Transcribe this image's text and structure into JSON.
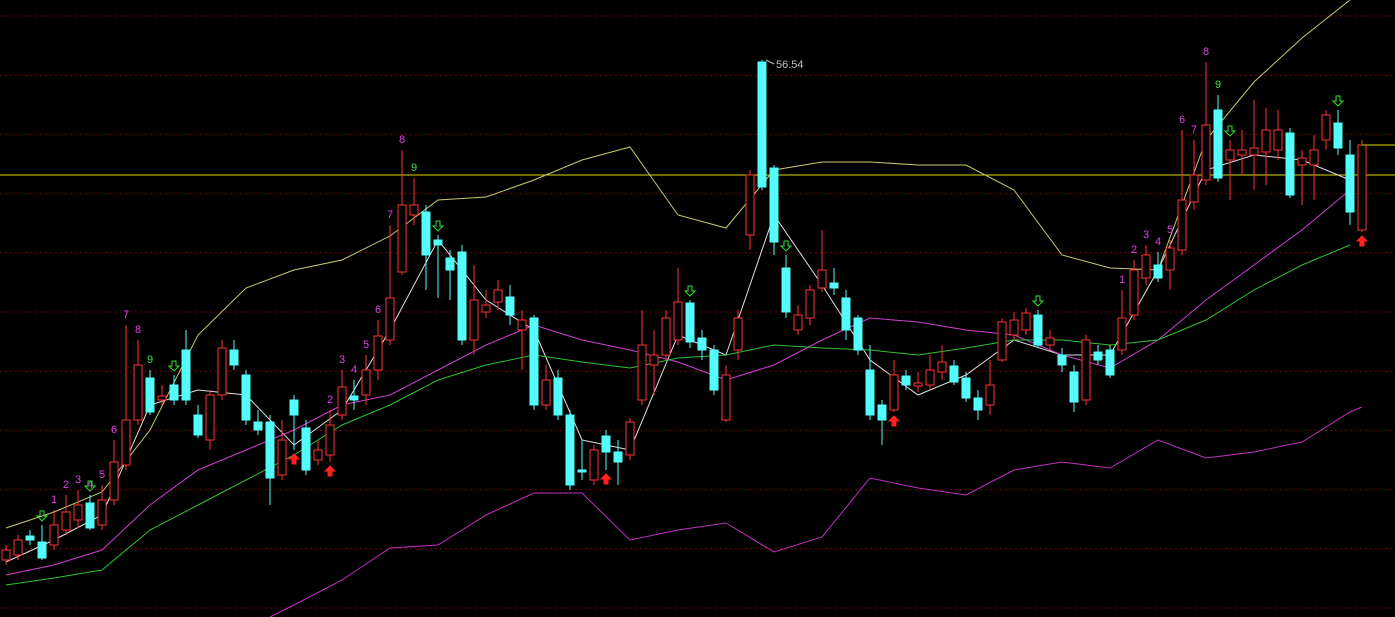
{
  "chart_data": {
    "type": "candlestick",
    "ylim": [
      28.69,
      59.54
    ],
    "grid": true,
    "up_color": "#ff3232",
    "down_color": "#54fcfc",
    "open": [
      31.54,
      31.79,
      32.74,
      32.44,
      32.29,
      33.04,
      33.54,
      34.39,
      33.29,
      34.54,
      36.29,
      38.54,
      40.64,
      39.54,
      40.29,
      42.04,
      38.79,
      37.54,
      39.79,
      42.04,
      40.79,
      38.44,
      38.44,
      35.79,
      39.54,
      38.14,
      36.54,
      36.79,
      38.79,
      39.74,
      39.79,
      41.04,
      42.54,
      45.94,
      48.79,
      48.94,
      47.54,
      46.64,
      46.94,
      42.54,
      43.94,
      44.44,
      44.69,
      43.04,
      43.64,
      39.29,
      40.64,
      38.79,
      36.04,
      35.54,
      37.74,
      36.94,
      36.79,
      39.54,
      41.29,
      41.79,
      42.54,
      44.39,
      42.64,
      42.04,
      38.54,
      42.04,
      47.79,
      56.44,
      51.14,
      46.14,
      43.04,
      43.64,
      45.14,
      45.39,
      44.64,
      43.64,
      41.04,
      39.29,
      39.04,
      40.74,
      40.24,
      40.29,
      40.94,
      41.24,
      40.64,
      39.64,
      39.29,
      41.54,
      42.79,
      43.04,
      43.79,
      42.29,
      41.79,
      40.94,
      39.54,
      41.94,
      42.04,
      42.04,
      43.79,
      45.64,
      46.29,
      46.04,
      47.04,
      49.44,
      50.54,
      54.04,
      51.54,
      51.79,
      51.79,
      51.94,
      52.04,
      52.89,
      51.29,
      51.29,
      52.54,
      53.39,
      51.79,
      48.04
    ],
    "high": [
      32.29,
      32.79,
      33.04,
      33.29,
      34.04,
      34.79,
      35.04,
      34.79,
      35.29,
      37.54,
      43.29,
      42.54,
      41.04,
      40.29,
      40.79,
      43.04,
      39.29,
      40.04,
      42.54,
      42.54,
      41.04,
      39.04,
      38.79,
      38.54,
      39.79,
      38.54,
      37.54,
      39.04,
      41.04,
      40.54,
      41.79,
      43.54,
      48.29,
      52.04,
      50.64,
      49.29,
      47.79,
      47.04,
      47.29,
      46.29,
      45.04,
      45.54,
      45.29,
      44.04,
      43.79,
      41.29,
      41.04,
      39.04,
      37.54,
      37.29,
      38.04,
      37.54,
      38.64,
      44.04,
      43.04,
      44.04,
      46.14,
      44.54,
      43.04,
      42.29,
      41.29,
      44.04,
      51.04,
      56.54,
      51.29,
      46.79,
      44.29,
      45.29,
      48.04,
      46.14,
      45.04,
      43.79,
      42.29,
      39.54,
      41.54,
      41.04,
      40.94,
      41.79,
      42.29,
      41.54,
      40.94,
      40.04,
      41.54,
      43.64,
      43.94,
      44.14,
      44.04,
      43.04,
      42.14,
      41.29,
      42.79,
      42.29,
      42.29,
      45.04,
      46.54,
      47.29,
      46.94,
      47.54,
      53.04,
      52.54,
      56.44,
      54.79,
      52.54,
      53.04,
      54.54,
      54.14,
      54.04,
      53.14,
      52.04,
      52.79,
      54.04,
      54.04,
      52.54,
      52.54
    ],
    "low": [
      31.29,
      31.54,
      32.29,
      31.54,
      32.04,
      32.79,
      33.14,
      33.04,
      33.04,
      34.29,
      36.04,
      38.29,
      38.79,
      39.29,
      39.29,
      39.29,
      37.64,
      37.04,
      39.54,
      41.04,
      38.29,
      37.79,
      34.29,
      35.54,
      37.04,
      35.79,
      36.29,
      36.44,
      38.54,
      39.04,
      39.29,
      40.54,
      42.29,
      45.79,
      48.29,
      45.04,
      44.64,
      44.54,
      42.29,
      41.79,
      43.64,
      44.04,
      43.29,
      41.04,
      39.04,
      39.04,
      38.54,
      35.04,
      35.54,
      35.29,
      36.04,
      35.29,
      36.54,
      39.29,
      39.79,
      41.54,
      42.29,
      42.14,
      41.54,
      39.79,
      38.44,
      41.54,
      47.04,
      50.04,
      46.79,
      43.64,
      42.79,
      43.29,
      44.94,
      44.79,
      42.54,
      41.79,
      38.54,
      37.29,
      38.94,
      40.04,
      39.94,
      40.04,
      40.54,
      40.29,
      39.44,
      38.54,
      38.79,
      41.44,
      42.54,
      42.79,
      42.14,
      42.04,
      40.94,
      38.94,
      39.29,
      41.29,
      40.64,
      41.79,
      43.54,
      45.29,
      45.44,
      45.04,
      46.79,
      49.04,
      50.29,
      50.44,
      49.54,
      50.79,
      50.04,
      50.29,
      51.54,
      49.64,
      49.29,
      49.54,
      52.04,
      51.79,
      48.29,
      47.94
    ],
    "close": [
      32.04,
      32.54,
      32.54,
      31.64,
      33.29,
      33.94,
      34.29,
      33.14,
      34.54,
      36.44,
      38.54,
      41.29,
      38.94,
      39.74,
      39.54,
      39.54,
      37.79,
      39.79,
      42.14,
      41.29,
      38.54,
      38.04,
      35.64,
      37.54,
      38.79,
      36.04,
      37.04,
      38.29,
      40.19,
      39.54,
      41.04,
      42.74,
      44.64,
      49.29,
      49.29,
      46.79,
      47.29,
      46.04,
      42.54,
      44.54,
      44.29,
      45.04,
      43.79,
      43.54,
      39.29,
      40.54,
      38.79,
      35.29,
      35.94,
      37.04,
      36.94,
      36.44,
      38.44,
      42.29,
      41.79,
      43.64,
      44.44,
      42.44,
      42.04,
      40.04,
      40.79,
      43.64,
      50.79,
      50.19,
      47.44,
      43.94,
      43.79,
      45.04,
      46.04,
      45.14,
      43.04,
      42.04,
      38.79,
      38.54,
      40.79,
      40.29,
      40.39,
      41.04,
      41.44,
      40.44,
      39.64,
      39.04,
      40.29,
      43.44,
      43.54,
      43.89,
      42.29,
      42.64,
      41.29,
      39.44,
      42.54,
      41.54,
      40.79,
      43.64,
      46.04,
      46.79,
      45.64,
      47.14,
      49.54,
      50.79,
      53.29,
      50.64,
      52.04,
      52.04,
      52.14,
      53.04,
      53.04,
      49.79,
      51.64,
      52.04,
      53.79,
      52.14,
      48.94,
      52.29
    ],
    "lines": [
      {
        "color": "#c8c870",
        "x": [
          0,
          4,
          8,
          12,
          16,
          20,
          24,
          28,
          32,
          36,
          40,
          44,
          48,
          52,
          56,
          60,
          64,
          68,
          72,
          76,
          80,
          84,
          88,
          92,
          96,
          100,
          104,
          108,
          112
        ],
        "values": [
          33.14,
          33.94,
          34.94,
          38.04,
          42.79,
          45.14,
          46.04,
          46.54,
          47.74,
          49.54,
          49.69,
          50.54,
          51.54,
          52.19,
          48.79,
          48.14,
          51.04,
          51.44,
          51.44,
          51.29,
          51.29,
          50.04,
          46.79,
          46.14,
          46.04,
          52.54,
          55.44,
          57.64,
          59.54
        ]
      },
      {
        "color": "#e0e0e0",
        "x": [
          0,
          4,
          8,
          12,
          16,
          20,
          24,
          28,
          32,
          36,
          40,
          44,
          48,
          52,
          56,
          60,
          64,
          68,
          72,
          76,
          80,
          84,
          88,
          92,
          96,
          100,
          104,
          108,
          112
        ],
        "values": [
          31.44,
          32.54,
          33.79,
          39.29,
          40.04,
          39.79,
          37.29,
          39.04,
          43.04,
          47.54,
          44.54,
          43.04,
          37.54,
          37.04,
          42.79,
          41.79,
          48.79,
          45.29,
          41.54,
          39.79,
          40.79,
          42.54,
          41.79,
          41.79,
          46.04,
          51.04,
          51.79,
          51.54,
          50.54
        ]
      },
      {
        "color": "#d040d0",
        "x": [
          0,
          4,
          8,
          12,
          16,
          20,
          24,
          28,
          32,
          36,
          40,
          44,
          48,
          52,
          56,
          60,
          64,
          68,
          72,
          76,
          80,
          84,
          88,
          92,
          96,
          100,
          104,
          108,
          112
        ],
        "values": [
          30.79,
          31.29,
          32.04,
          34.29,
          36.04,
          37.04,
          38.04,
          39.29,
          39.79,
          41.04,
          42.29,
          43.29,
          42.54,
          42.04,
          41.44,
          40.54,
          41.29,
          42.54,
          43.64,
          43.44,
          43.04,
          42.79,
          41.79,
          41.14,
          42.54,
          44.54,
          46.29,
          48.04,
          50.04
        ]
      },
      {
        "color": "#30c030",
        "x": [
          0,
          4,
          8,
          12,
          16,
          20,
          24,
          28,
          32,
          36,
          40,
          44,
          48,
          52,
          56,
          60,
          64,
          68,
          72,
          76,
          80,
          84,
          88,
          92,
          96,
          100,
          104,
          108,
          112
        ],
        "values": [
          30.29,
          30.64,
          31.04,
          33.04,
          34.29,
          35.54,
          36.79,
          38.29,
          39.29,
          40.54,
          41.29,
          41.79,
          41.44,
          41.14,
          41.64,
          41.79,
          42.29,
          42.14,
          42.04,
          41.79,
          42.14,
          42.54,
          42.54,
          42.29,
          42.54,
          43.54,
          45.04,
          46.29,
          47.29
        ]
      },
      {
        "color": "#c030c0",
        "x": [
          22,
          24,
          28,
          32,
          36,
          40,
          44,
          48,
          52,
          56,
          60,
          64,
          68,
          72,
          76,
          80,
          84,
          88,
          92,
          96,
          100,
          104,
          108,
          112,
          113
        ],
        "values": [
          28.69,
          29.29,
          30.54,
          32.14,
          32.29,
          33.79,
          34.89,
          34.89,
          32.54,
          33.04,
          33.39,
          31.94,
          32.69,
          35.64,
          35.14,
          34.79,
          36.04,
          36.44,
          36.14,
          37.54,
          36.64,
          36.94,
          37.44,
          38.94,
          39.19
        ]
      }
    ],
    "hline": {
      "value": 50.79,
      "color": "#d8d800"
    },
    "td_labels": [
      {
        "x": 4,
        "text": "1",
        "color": "#e040e0"
      },
      {
        "x": 5,
        "text": "2",
        "color": "#e040e0"
      },
      {
        "x": 6,
        "text": "3",
        "color": "#e040e0"
      },
      {
        "x": 7,
        "text": "4",
        "color": "#e040e0"
      },
      {
        "x": 8,
        "text": "5",
        "color": "#e040e0"
      },
      {
        "x": 9,
        "text": "6",
        "color": "#e040e0"
      },
      {
        "x": 10,
        "text": "7",
        "color": "#e040e0"
      },
      {
        "x": 11,
        "text": "8",
        "color": "#e040e0"
      },
      {
        "x": 12,
        "text": "9",
        "color": "#40e040"
      },
      {
        "x": 27,
        "text": "2",
        "color": "#e040e0"
      },
      {
        "x": 28,
        "text": "3",
        "color": "#e040e0"
      },
      {
        "x": 29,
        "text": "4",
        "color": "#e040e0"
      },
      {
        "x": 30,
        "text": "5",
        "color": "#e040e0"
      },
      {
        "x": 31,
        "text": "6",
        "color": "#e040e0"
      },
      {
        "x": 32,
        "text": "7",
        "color": "#e040e0"
      },
      {
        "x": 33,
        "text": "8",
        "color": "#e040e0"
      },
      {
        "x": 34,
        "text": "9",
        "color": "#40e040"
      },
      {
        "x": 93,
        "text": "1",
        "color": "#e040e0"
      },
      {
        "x": 94,
        "text": "2",
        "color": "#e040e0"
      },
      {
        "x": 95,
        "text": "3",
        "color": "#e040e0"
      },
      {
        "x": 96,
        "text": "4",
        "color": "#e040e0"
      },
      {
        "x": 97,
        "text": "5",
        "color": "#e040e0"
      },
      {
        "x": 98,
        "text": "6",
        "color": "#e040e0"
      },
      {
        "x": 99,
        "text": "7",
        "color": "#e040e0"
      },
      {
        "x": 100,
        "text": "8",
        "color": "#e040e0"
      },
      {
        "x": 101,
        "text": "9",
        "color": "#40e040"
      }
    ],
    "signal_colors": {
      "up": "#ff2020",
      "down": "#30e030"
    },
    "signals": [
      {
        "x": 3,
        "direction": "down"
      },
      {
        "x": 7,
        "direction": "down"
      },
      {
        "x": 14,
        "direction": "down"
      },
      {
        "x": 36,
        "direction": "down"
      },
      {
        "x": 57,
        "direction": "down"
      },
      {
        "x": 65,
        "direction": "down"
      },
      {
        "x": 86,
        "direction": "down"
      },
      {
        "x": 102,
        "direction": "down"
      },
      {
        "x": 111,
        "direction": "down"
      },
      {
        "x": 24,
        "direction": "up"
      },
      {
        "x": 27,
        "direction": "up"
      },
      {
        "x": 50,
        "direction": "up"
      },
      {
        "x": 74,
        "direction": "up"
      },
      {
        "x": 113,
        "direction": "up"
      }
    ]
  }
}
